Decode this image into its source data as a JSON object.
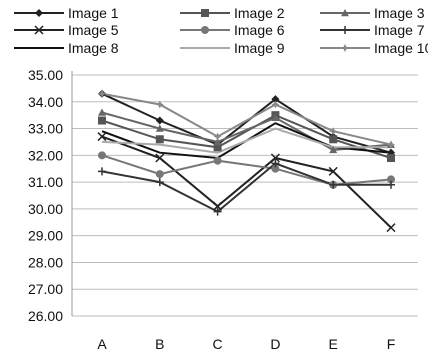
{
  "chart_data": {
    "type": "line",
    "title": "",
    "xlabel": "",
    "ylabel": "",
    "categories": [
      "A",
      "B",
      "C",
      "D",
      "E",
      "F"
    ],
    "ylim": [
      26.0,
      35.0
    ],
    "ytick_step": 1.0,
    "yticks": [
      "26.00",
      "27.00",
      "28.00",
      "29.00",
      "30.00",
      "31.00",
      "32.00",
      "33.00",
      "34.00",
      "35.00"
    ],
    "grid": true,
    "legend_position": "top",
    "series": [
      {
        "name": "Image 1",
        "values": [
          34.3,
          33.3,
          32.4,
          34.1,
          32.7,
          32.1
        ],
        "color": "#222222",
        "marker": "diamond"
      },
      {
        "name": "Image 2",
        "values": [
          33.3,
          32.6,
          32.3,
          33.5,
          32.6,
          31.9
        ],
        "color": "#555555",
        "marker": "square"
      },
      {
        "name": "Image 3",
        "values": [
          33.6,
          33.0,
          32.5,
          33.4,
          32.2,
          32.4
        ],
        "color": "#666666",
        "marker": "triangle"
      },
      {
        "name": "Image 5",
        "values": [
          32.7,
          31.9,
          30.1,
          31.9,
          31.4,
          29.3
        ],
        "color": "#222222",
        "marker": "x"
      },
      {
        "name": "Image 6",
        "values": [
          32.0,
          31.3,
          31.8,
          31.5,
          30.9,
          31.1
        ],
        "color": "#777777",
        "marker": "circle"
      },
      {
        "name": "Image 7",
        "values": [
          31.4,
          31.0,
          29.9,
          31.7,
          30.9,
          30.9
        ],
        "color": "#333333",
        "marker": "plus"
      },
      {
        "name": "Image 8",
        "values": [
          32.9,
          32.1,
          31.9,
          33.2,
          32.3,
          32.1
        ],
        "color": "#111111",
        "marker": "none"
      },
      {
        "name": "Image 9",
        "values": [
          32.5,
          32.4,
          32.1,
          33.0,
          32.3,
          32.3
        ],
        "color": "#aaaaaa",
        "marker": "none"
      },
      {
        "name": "Image 10",
        "values": [
          34.3,
          33.9,
          32.7,
          33.9,
          32.9,
          32.4
        ],
        "color": "#888888",
        "marker": "star"
      }
    ]
  }
}
